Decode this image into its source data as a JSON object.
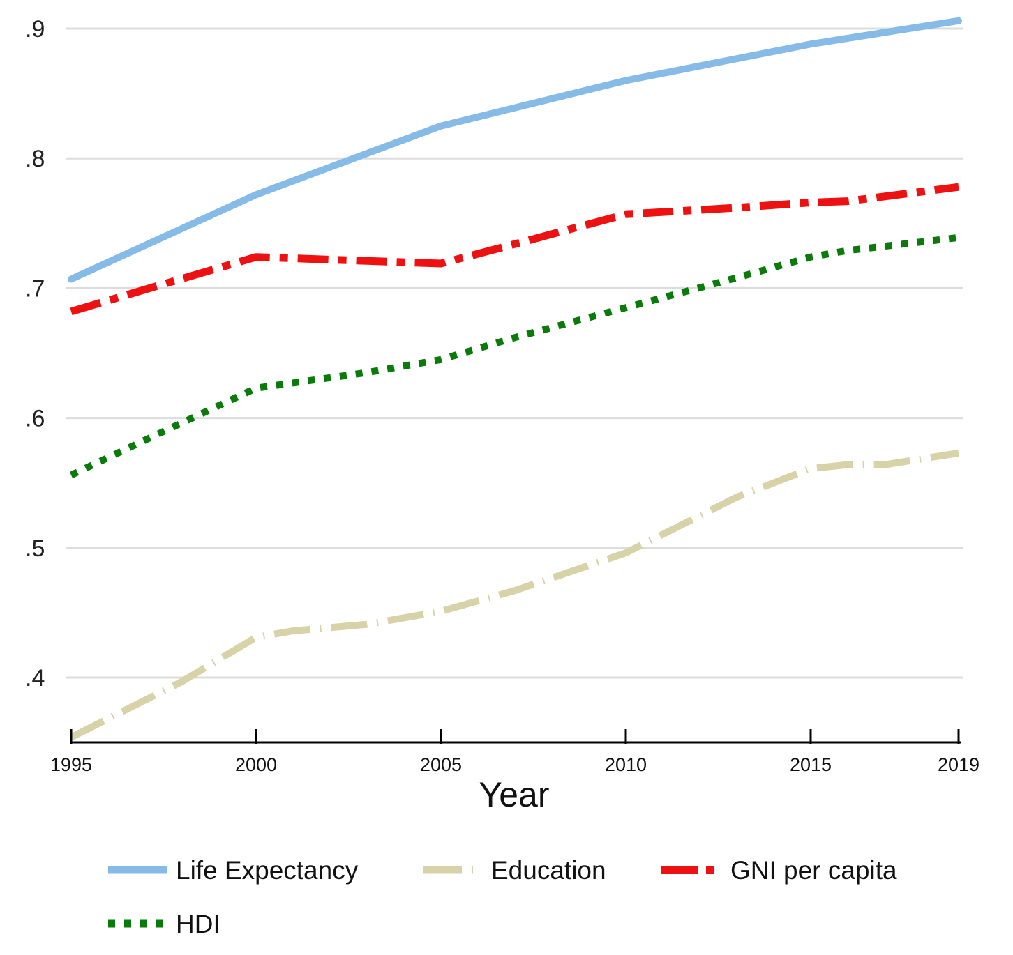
{
  "chart_data": {
    "type": "line",
    "title": "",
    "xlabel": "Year",
    "ylabel": "",
    "xlim": [
      1995,
      2019
    ],
    "ylim": [
      0.35,
      0.9
    ],
    "x_ticks": [
      1995,
      2000,
      2005,
      2010,
      2015,
      2019
    ],
    "y_ticks": [
      0.4,
      0.5,
      0.6,
      0.7,
      0.8,
      0.9
    ],
    "y_tick_labels": [
      ".4",
      ".5",
      ".6",
      ".7",
      ".8",
      ".9"
    ],
    "grid": true,
    "legend_position": "bottom",
    "series": [
      {
        "name": "Life Expectancy",
        "color": "#85bbe6",
        "style": "solid",
        "x": [
          1995,
          2000,
          2005,
          2010,
          2015,
          2019
        ],
        "values": [
          0.707,
          0.772,
          0.825,
          0.86,
          0.888,
          0.906
        ]
      },
      {
        "name": "Education",
        "color": "#d8d2a8",
        "style": "long-dash-dot",
        "x": [
          1995,
          1998,
          2000,
          2001,
          2003,
          2005,
          2007,
          2010,
          2013,
          2015,
          2016,
          2017,
          2019
        ],
        "values": [
          0.354,
          0.397,
          0.431,
          0.436,
          0.441,
          0.451,
          0.467,
          0.496,
          0.539,
          0.561,
          0.564,
          0.564,
          0.573
        ]
      },
      {
        "name": "GNI per capita",
        "color": "#ee1111",
        "style": "dash-dot",
        "x": [
          1995,
          1997,
          2000,
          2003,
          2005,
          2007,
          2010,
          2013,
          2015,
          2016,
          2019
        ],
        "values": [
          0.682,
          0.699,
          0.724,
          0.721,
          0.719,
          0.734,
          0.757,
          0.762,
          0.766,
          0.767,
          0.778
        ]
      },
      {
        "name": "HDI",
        "color": "#0a7a0a",
        "style": "dotted",
        "x": [
          1995,
          1997,
          2000,
          2003,
          2005,
          2007,
          2010,
          2013,
          2015,
          2016,
          2019
        ],
        "values": [
          0.556,
          0.583,
          0.623,
          0.635,
          0.645,
          0.662,
          0.685,
          0.708,
          0.724,
          0.729,
          0.739
        ]
      }
    ]
  }
}
